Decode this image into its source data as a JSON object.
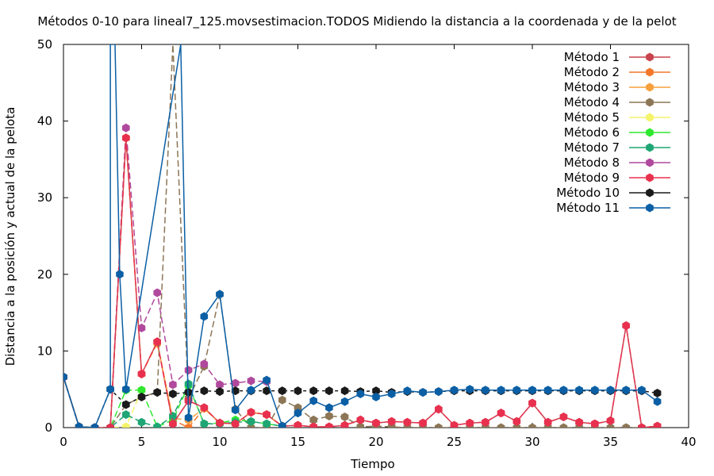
{
  "chart_data": {
    "type": "line",
    "title": "Métodos 0-10 para lineal7_125.movsestimacion.TODOS Midiendo la distancia a la coordenada y de la pelot",
    "xlabel": "Tiempo",
    "ylabel": "Distancia a la posición y actual de la pelota",
    "xlim": [
      0,
      40
    ],
    "ylim": [
      0,
      50
    ],
    "xticks": [
      0,
      5,
      10,
      15,
      20,
      25,
      30,
      35,
      40
    ],
    "yticks": [
      0,
      10,
      20,
      30,
      40,
      50
    ],
    "grid": false,
    "legend_position": "top-right",
    "series": [
      {
        "name": "Método 1",
        "color": "#c8434d",
        "points": [
          [
            0,
            6.6
          ],
          [
            1,
            0.1
          ],
          [
            2,
            0
          ],
          [
            3,
            0
          ],
          [
            4,
            37.8
          ],
          [
            5,
            7
          ],
          [
            6,
            11.2
          ],
          [
            7,
            0.5
          ],
          [
            8,
            3.5
          ],
          [
            9,
            2.6
          ],
          [
            10,
            0.6
          ],
          [
            11,
            0.5
          ],
          [
            12,
            2
          ],
          [
            13,
            1.7
          ],
          [
            14,
            0.2
          ],
          [
            15,
            0.3
          ],
          [
            16,
            0.1
          ],
          [
            17,
            0.1
          ],
          [
            18,
            0.3
          ],
          [
            19,
            1
          ],
          [
            20,
            0.6
          ],
          [
            21,
            0.8
          ],
          [
            22,
            0.7
          ],
          [
            23,
            0.6
          ],
          [
            24,
            2.4
          ],
          [
            25,
            0.3
          ],
          [
            26,
            0.6
          ],
          [
            27,
            0.7
          ],
          [
            28,
            1.9
          ],
          [
            29,
            0.8
          ],
          [
            30,
            3.2
          ],
          [
            31,
            0.7
          ],
          [
            32,
            1.4
          ],
          [
            33,
            0.7
          ],
          [
            34,
            0.5
          ],
          [
            35,
            0.9
          ],
          [
            36,
            13.3
          ],
          [
            37,
            0
          ],
          [
            38,
            0.2
          ]
        ]
      },
      {
        "name": "Método 2",
        "color": "#f4772b",
        "points": [
          [
            0,
            6.6
          ],
          [
            1,
            0.1
          ],
          [
            2,
            0
          ],
          [
            3,
            0
          ],
          [
            4,
            37.8
          ],
          [
            5,
            7
          ],
          [
            6,
            11.2
          ],
          [
            7,
            1
          ],
          [
            8,
            0
          ],
          [
            9,
            2.5
          ],
          [
            10,
            0.6
          ],
          [
            11,
            0.5
          ],
          [
            12,
            2
          ],
          [
            13,
            1.7
          ],
          [
            14,
            0.2
          ]
        ]
      },
      {
        "name": "Método 3",
        "color": "#f6a03d",
        "points": [
          [
            0,
            6.6
          ],
          [
            1,
            0.1
          ],
          [
            2,
            0
          ],
          [
            3,
            0
          ],
          [
            4,
            37.8
          ],
          [
            5,
            7
          ],
          [
            6,
            11
          ],
          [
            7,
            1.2
          ],
          [
            8,
            1
          ],
          [
            9,
            2.5
          ],
          [
            10,
            0.6
          ],
          [
            11,
            0.5
          ],
          [
            12,
            2
          ],
          [
            13,
            1.7
          ],
          [
            14,
            0.2
          ]
        ]
      },
      {
        "name": "Método 4",
        "color": "#8c7656",
        "points": [
          [
            0,
            6.6
          ],
          [
            1,
            0.1
          ],
          [
            2,
            0
          ],
          [
            3,
            0
          ],
          [
            4,
            3
          ],
          [
            5,
            4
          ],
          [
            6,
            4.6
          ],
          [
            7,
            50
          ],
          [
            8,
            3.8
          ],
          [
            9,
            8
          ],
          [
            10,
            17.4
          ],
          [
            11,
            2.4
          ],
          [
            12,
            0
          ],
          [
            13,
            0
          ],
          [
            14,
            3.6
          ],
          [
            15,
            2.6
          ],
          [
            16,
            1
          ],
          [
            17,
            1.5
          ],
          [
            18,
            1.4
          ],
          [
            19,
            0.1
          ],
          [
            20,
            0.2
          ],
          [
            21,
            0.1
          ],
          [
            22,
            0
          ],
          [
            23,
            0
          ],
          [
            24,
            0
          ],
          [
            25,
            0
          ],
          [
            26,
            0
          ],
          [
            27,
            0
          ],
          [
            28,
            0
          ],
          [
            29,
            0
          ],
          [
            30,
            0
          ],
          [
            31,
            0
          ],
          [
            32,
            0
          ],
          [
            33,
            0
          ],
          [
            34,
            0
          ],
          [
            35,
            0
          ],
          [
            36,
            0
          ],
          [
            37,
            0
          ],
          [
            38,
            0
          ]
        ]
      },
      {
        "name": "Método 5",
        "color": "#f4f46a",
        "points": [
          [
            0,
            6.6
          ],
          [
            1,
            0.1
          ],
          [
            2,
            0
          ],
          [
            3,
            0
          ],
          [
            4,
            0.1
          ],
          [
            5,
            4.9
          ]
        ]
      },
      {
        "name": "Método 6",
        "color": "#2ee82e",
        "points": [
          [
            0,
            6.6
          ],
          [
            1,
            0.1
          ],
          [
            2,
            0
          ],
          [
            3,
            0
          ],
          [
            4,
            4.9
          ],
          [
            5,
            4.9
          ],
          [
            6,
            0.1
          ],
          [
            7,
            1
          ],
          [
            8,
            5.5
          ],
          [
            9,
            0.5
          ],
          [
            10,
            0.6
          ],
          [
            11,
            1
          ],
          [
            12,
            0.8
          ],
          [
            13,
            0.5
          ],
          [
            14,
            0.2
          ]
        ]
      },
      {
        "name": "Método 7",
        "color": "#1ea674",
        "points": [
          [
            0,
            6.6
          ],
          [
            1,
            0.1
          ],
          [
            2,
            0
          ],
          [
            3,
            0
          ],
          [
            4,
            1.7
          ],
          [
            5,
            0.7
          ],
          [
            6,
            0.1
          ],
          [
            7,
            1.5
          ],
          [
            8,
            5.7
          ],
          [
            9,
            0.5
          ],
          [
            10,
            0.5
          ],
          [
            11,
            0.7
          ],
          [
            12,
            0.8
          ],
          [
            13,
            0.5
          ],
          [
            14,
            0.2
          ]
        ]
      },
      {
        "name": "Método 8",
        "color": "#b0499d",
        "points": [
          [
            0,
            6.6
          ],
          [
            1,
            0.1
          ],
          [
            2,
            0
          ],
          [
            3,
            0
          ],
          [
            4,
            39.1
          ],
          [
            5,
            13
          ],
          [
            6,
            17.6
          ],
          [
            7,
            5.6
          ],
          [
            8,
            7.5
          ],
          [
            9,
            8.3
          ],
          [
            10,
            5.6
          ],
          [
            11,
            5.8
          ],
          [
            12,
            6.1
          ],
          [
            13,
            6
          ]
        ]
      },
      {
        "name": "Método 9",
        "color": "#e8304f",
        "points": [
          [
            0,
            6.6
          ],
          [
            1,
            0.1
          ],
          [
            2,
            0
          ],
          [
            3,
            0
          ],
          [
            4,
            37.8
          ],
          [
            5,
            7
          ],
          [
            6,
            11.2
          ],
          [
            7,
            0.5
          ],
          [
            8,
            3.5
          ],
          [
            9,
            2.6
          ],
          [
            10,
            0.6
          ],
          [
            11,
            0.5
          ],
          [
            12,
            2
          ],
          [
            13,
            1.7
          ],
          [
            14,
            0.2
          ],
          [
            15,
            0.3
          ],
          [
            16,
            0.1
          ],
          [
            17,
            0.1
          ],
          [
            18,
            0.3
          ],
          [
            19,
            1
          ],
          [
            20,
            0.6
          ],
          [
            21,
            0.8
          ],
          [
            22,
            0.7
          ],
          [
            23,
            0.6
          ],
          [
            24,
            2.4
          ],
          [
            25,
            0.3
          ],
          [
            26,
            0.6
          ],
          [
            27,
            0.7
          ],
          [
            28,
            1.9
          ],
          [
            29,
            0.8
          ],
          [
            30,
            3.2
          ],
          [
            31,
            0.7
          ],
          [
            32,
            1.4
          ],
          [
            33,
            0.7
          ],
          [
            34,
            0.5
          ],
          [
            35,
            0.9
          ],
          [
            36,
            13.3
          ],
          [
            37,
            0
          ],
          [
            38,
            0.2
          ]
        ]
      },
      {
        "name": "Método 10",
        "color": "#1a1a1a",
        "points": [
          [
            0,
            6.6
          ],
          [
            1,
            0.1
          ],
          [
            2,
            0
          ],
          [
            3,
            5
          ],
          [
            4,
            3
          ],
          [
            5,
            4
          ],
          [
            6,
            4.6
          ],
          [
            7,
            4.4
          ],
          [
            8,
            4.6
          ],
          [
            9,
            4.8
          ],
          [
            10,
            4.7
          ],
          [
            11,
            4.8
          ],
          [
            12,
            4.8
          ],
          [
            13,
            4.8
          ],
          [
            14,
            4.8
          ],
          [
            15,
            4.8
          ],
          [
            16,
            4.8
          ],
          [
            17,
            4.8
          ],
          [
            18,
            4.8
          ],
          [
            19,
            4.7
          ],
          [
            20,
            4.8
          ],
          [
            21,
            4.6
          ],
          [
            22,
            4.7
          ],
          [
            23,
            4.6
          ],
          [
            24,
            4.7
          ],
          [
            25,
            4.8
          ],
          [
            26,
            4.8
          ],
          [
            27,
            4.8
          ],
          [
            28,
            4.8
          ],
          [
            29,
            4.8
          ],
          [
            30,
            4.8
          ],
          [
            31,
            4.8
          ],
          [
            32,
            4.8
          ],
          [
            33,
            4.8
          ],
          [
            34,
            4.8
          ],
          [
            35,
            4.8
          ],
          [
            36,
            4.8
          ],
          [
            37,
            4.8
          ],
          [
            38,
            4.5
          ]
        ]
      },
      {
        "name": "Método 11",
        "color": "#0b5fa5",
        "points": [
          [
            0,
            6.6
          ],
          [
            1,
            0.1
          ],
          [
            2,
            0
          ],
          [
            3,
            5
          ],
          [
            3,
            50
          ],
          [
            3.3,
            50
          ],
          [
            3.6,
            20
          ],
          [
            4,
            5
          ],
          [
            7.5,
            50
          ],
          [
            8,
            1.3
          ],
          [
            9,
            14.5
          ],
          [
            10,
            17.4
          ],
          [
            11,
            2.3
          ],
          [
            12,
            4.9
          ],
          [
            13,
            6.2
          ],
          [
            14,
            0.2
          ],
          [
            15,
            1.9
          ],
          [
            16,
            3.5
          ],
          [
            17,
            2.6
          ],
          [
            18,
            3.4
          ],
          [
            19,
            4.4
          ],
          [
            20,
            4
          ],
          [
            21,
            4.4
          ],
          [
            22,
            4.8
          ],
          [
            23,
            4.6
          ],
          [
            24,
            4.7
          ],
          [
            25,
            4.9
          ],
          [
            26,
            5
          ],
          [
            27,
            4.9
          ],
          [
            28,
            4.9
          ],
          [
            29,
            4.9
          ],
          [
            30,
            4.9
          ],
          [
            31,
            4.9
          ],
          [
            32,
            4.9
          ],
          [
            33,
            4.9
          ],
          [
            34,
            4.9
          ],
          [
            35,
            4.9
          ],
          [
            36,
            4.9
          ],
          [
            37,
            4.9
          ],
          [
            38,
            3.4
          ]
        ]
      }
    ]
  }
}
